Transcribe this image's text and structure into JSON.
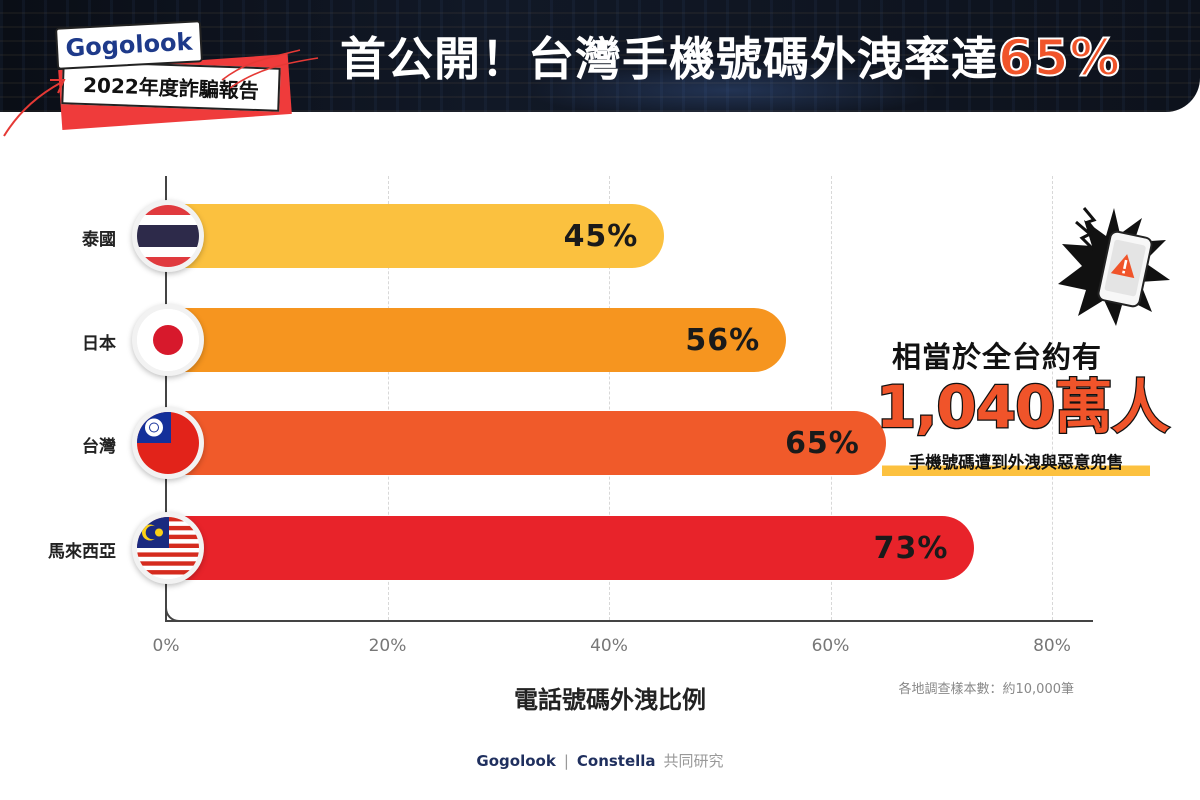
{
  "header": {
    "badge_brand": "Gogolook",
    "badge_report": "2022年度詐騙報告",
    "title_main": "首公開！台灣手機號碼外洩率達",
    "title_highlight": "65%"
  },
  "colors": {
    "bar_thailand": "#fbc13f",
    "bar_japan": "#f6951f",
    "bar_taiwan": "#f05a2a",
    "bar_malaysia": "#e8232a",
    "accent": "#f0542a"
  },
  "chart_data": {
    "type": "bar",
    "orientation": "horizontal",
    "title": "首公開！台灣手機號碼外洩率達65%",
    "xlabel": "電話號碼外洩比例",
    "ylabel": "",
    "categories": [
      "泰國",
      "日本",
      "台灣",
      "馬來西亞"
    ],
    "values": [
      45,
      56,
      65,
      73
    ],
    "value_labels": [
      "45%",
      "56%",
      "65%",
      "73%"
    ],
    "xlim": [
      0,
      80
    ],
    "x_ticks": [
      "0%",
      "20%",
      "40%",
      "60%",
      "80%"
    ],
    "grid": true,
    "flags": [
      "thailand-flag",
      "japan-flag",
      "taiwan-flag",
      "malaysia-flag"
    ],
    "note": "各地調查樣本數：約10,000筆"
  },
  "callout": {
    "line1": "相當於全台約有",
    "big": "1,040萬人",
    "line3": "手機號碼遭到外洩與惡意兜售",
    "icon": "warning-phone-icon"
  },
  "footer": {
    "brand1": "Gogolook",
    "separator": "|",
    "brand2": "Constella",
    "suffix": "共同研究"
  }
}
